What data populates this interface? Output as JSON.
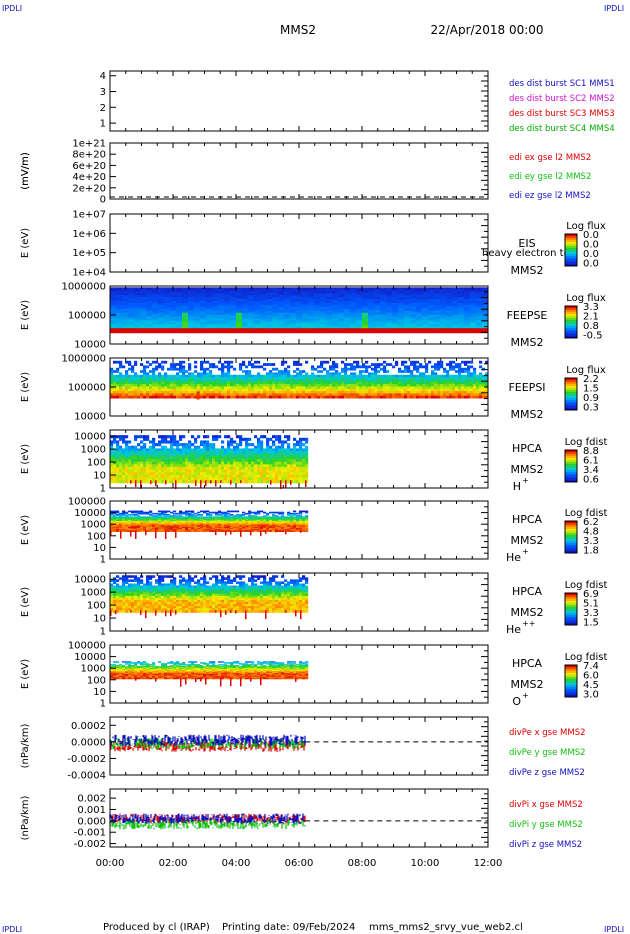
{
  "header": {
    "corner_tl": "IPDLI",
    "corner_tr": "IPDLI",
    "corner_bl": "IPDLI",
    "corner_br": "IPDLI",
    "spacecraft": "MMS2",
    "date": "22/Apr/2018 00:00"
  },
  "footer": {
    "credit": "Produced by cl (IRAP)",
    "printing": "Printing date: 09/Feb/2024",
    "file": "mms_mms2_srvy_vue_web2.cl"
  },
  "colors": {
    "c1": "#1010c0",
    "c2": "#d010d0",
    "c3": "#e00000",
    "c4": "#00b000",
    "red": "#e00000",
    "green": "#10c010",
    "blue": "#1010c0"
  },
  "time_axis": {
    "range_hours": [
      0,
      12
    ],
    "ticks": [
      "00:00",
      "02:00",
      "04:00",
      "06:00",
      "08:00",
      "10:00",
      "12:00"
    ]
  },
  "chart_data": [
    {
      "panel": "disturbances",
      "type": "line",
      "yticks": [
        "4",
        "3",
        "2",
        "1"
      ],
      "ylim": [
        0.5,
        4.3
      ],
      "legend": [
        "des dist burst SC1 MMS1",
        "des dist burst SC2 MMS2",
        "des dist burst SC3 MMS3",
        "des dist burst SC4 MMS4"
      ]
    },
    {
      "panel": "edi",
      "type": "line",
      "ylabel": "(mV/m)",
      "yticks": [
        "1e+21",
        "8e+20",
        "6e+20",
        "4e+20",
        "2e+20",
        "0"
      ],
      "ylim": [
        0,
        1e+21
      ],
      "legend": [
        "edi ex gse l2 MMS2",
        "edi ey gse l2 MMS2",
        "edi ez gse l2 MMS2"
      ]
    },
    {
      "panel": "eis",
      "type": "heatmap",
      "ylabel": "E (eV)",
      "scale": "log",
      "yticks": [
        "1e+07",
        "1e+06",
        "1e+05",
        "1e+04"
      ],
      "ylim": [
        10000.0,
        10000000.0
      ],
      "instrument": "EIS",
      "sc": "MMS2",
      "overlap": "heavy electron tof",
      "cb_title": "Log flux",
      "cb_ticks": [
        "0.0",
        "0.0",
        "0.0",
        "0.0"
      ],
      "cb_range": [
        0,
        0
      ]
    },
    {
      "panel": "feepse",
      "type": "heatmap",
      "ylabel": "E (eV)",
      "scale": "log",
      "yticks": [
        "1000000",
        "100000",
        "10000"
      ],
      "ylim": [
        10000.0,
        1000000.0
      ],
      "instrument": "FEEPSE",
      "sc": "MMS2",
      "cb_title": "Log flux",
      "cb_ticks": [
        "3.3",
        "2.1",
        "0.8",
        "-0.5"
      ],
      "cb_range": [
        -0.5,
        3.3
      ],
      "coverage_hours": [
        0,
        12
      ]
    },
    {
      "panel": "feepsi",
      "type": "heatmap",
      "ylabel": "E (eV)",
      "scale": "log",
      "yticks": [
        "1000000",
        "100000",
        "10000"
      ],
      "ylim": [
        10000.0,
        1000000.0
      ],
      "instrument": "FEEPSI",
      "sc": "MMS2",
      "cb_title": "Log flux",
      "cb_ticks": [
        "2.2",
        "1.5",
        "0.9",
        "0.3"
      ],
      "cb_range": [
        0.3,
        2.2
      ],
      "coverage_hours": [
        0,
        12
      ]
    },
    {
      "panel": "hpca_h",
      "type": "heatmap",
      "ylabel": "E (eV)",
      "scale": "log",
      "yticks": [
        "10000",
        "1000",
        "100",
        "10",
        "1"
      ],
      "ylim": [
        1,
        30000.0
      ],
      "instrument": "HPCA",
      "sc": "MMS2",
      "species": "H",
      "charge": "+",
      "cb_title": "Log fdist",
      "cb_ticks": [
        "8.8",
        "6.1",
        "3.4",
        "0.6"
      ],
      "cb_range": [
        0.6,
        8.8
      ],
      "coverage_hours": [
        0,
        6.2
      ]
    },
    {
      "panel": "hpca_he1",
      "type": "heatmap",
      "ylabel": "E (eV)",
      "scale": "log",
      "yticks": [
        "100000",
        "10000",
        "1000",
        "100",
        "10",
        "1"
      ],
      "ylim": [
        1,
        100000.0
      ],
      "instrument": "HPCA",
      "sc": "MMS2",
      "species": "He",
      "charge": "+",
      "cb_title": "Log fdist",
      "cb_ticks": [
        "6.2",
        "4.8",
        "3.3",
        "1.8"
      ],
      "cb_range": [
        1.8,
        6.2
      ],
      "coverage_hours": [
        0,
        6.2
      ]
    },
    {
      "panel": "hpca_he2",
      "type": "heatmap",
      "ylabel": "E (eV)",
      "scale": "log",
      "yticks": [
        "10000",
        "1000",
        "100",
        "10",
        "1"
      ],
      "ylim": [
        1,
        30000.0
      ],
      "instrument": "HPCA",
      "sc": "MMS2",
      "species": "He",
      "charge": "++",
      "cb_title": "Log fdist",
      "cb_ticks": [
        "6.9",
        "5.1",
        "3.3",
        "1.5"
      ],
      "cb_range": [
        1.5,
        6.9
      ],
      "coverage_hours": [
        0,
        6.2
      ]
    },
    {
      "panel": "hpca_o",
      "type": "heatmap",
      "ylabel": "E (eV)",
      "scale": "log",
      "yticks": [
        "100000",
        "10000",
        "1000",
        "100",
        "10",
        "1"
      ],
      "ylim": [
        1,
        100000.0
      ],
      "instrument": "HPCA",
      "sc": "MMS2",
      "species": "O",
      "charge": "+",
      "cb_title": "Log fdist",
      "cb_ticks": [
        "7.4",
        "6.0",
        "4.5",
        "3.0"
      ],
      "cb_range": [
        3.0,
        7.4
      ],
      "coverage_hours": [
        0,
        6.2
      ]
    },
    {
      "panel": "divpe",
      "type": "line",
      "ylabel": "(nPa/km)",
      "yticks": [
        "0.0002",
        "0.0000",
        "-0.0002",
        "-0.0004"
      ],
      "ylim": [
        -0.0004,
        0.0003
      ],
      "legend": [
        "divPe x gse MMS2",
        "divPe y gse MMS2",
        "divPe z gse MMS2"
      ],
      "series_means": [
        -5e-05,
        -2e-05,
        2e-05
      ],
      "coverage_hours": [
        0,
        6.2
      ]
    },
    {
      "panel": "divpi",
      "type": "line",
      "ylabel": "(nPa/km)",
      "yticks": [
        "0.002",
        "0.001",
        "0.000",
        "-0.001",
        "-0.002"
      ],
      "ylim": [
        -0.0023,
        0.0028
      ],
      "legend": [
        "divPi x gse MMS2",
        "divPi y gse MMS2",
        "divPi z gse MMS2"
      ],
      "series_means": [
        0.0002,
        -0.0003,
        0.0002
      ],
      "coverage_hours": [
        0,
        6.2
      ]
    }
  ]
}
